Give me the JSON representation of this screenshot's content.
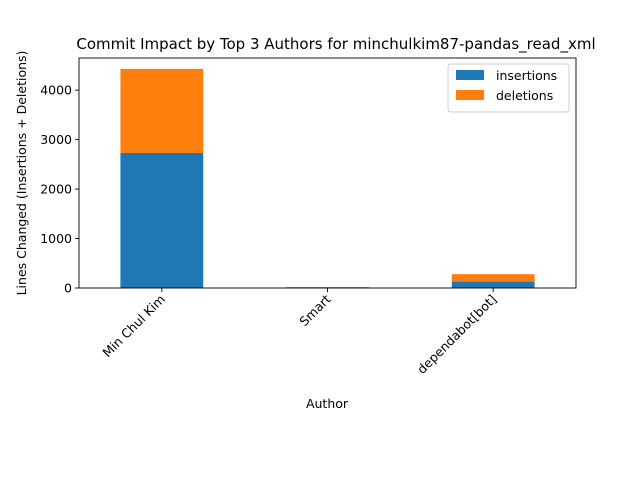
{
  "chart_data": {
    "type": "bar",
    "stacked": true,
    "title": "Commit Impact by Top 3 Authors for minchulkim87-pandas_read_xml",
    "xlabel": "Author",
    "ylabel": "Lines Changed (Insertions + Deletions)",
    "categories": [
      "Min Chul Kim",
      "Smart",
      "dependabot[bot]"
    ],
    "series": [
      {
        "name": "insertions",
        "color": "#1f77b4",
        "values": [
          2730,
          12,
          130
        ]
      },
      {
        "name": "deletions",
        "color": "#ff7f0e",
        "values": [
          1700,
          8,
          150
        ]
      }
    ],
    "ylim": [
      0,
      4650
    ],
    "yticks": [
      0,
      1000,
      2000,
      3000,
      4000
    ],
    "grid": false,
    "legend_position": "top-right"
  }
}
